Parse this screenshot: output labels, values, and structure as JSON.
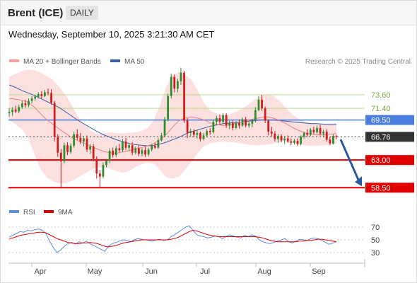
{
  "header": {
    "title": "Brent (ICE)",
    "timeframe": "DAILY"
  },
  "datetime": "Wednesday, September 10, 2025 3:21:30 AM CET",
  "legend": {
    "ma20": "MA 20 + Bollinger Bands",
    "ma50": "MA 50",
    "credit": "Research © 2025 Trading Central",
    "rsi": "RSI",
    "rsi_ma": "9MA"
  },
  "colors": {
    "candle_up": "#2e8b2e",
    "candle_down": "#d11a1a",
    "bollinger_fill": "#fbd9d9",
    "ma20": "#f08080",
    "ma50": "#3a5fa8",
    "resistance_line": "#b6d98a",
    "pivot_line": "#4a7de0",
    "support_line": "#e00000",
    "rsi_line": "#5b8ee0",
    "rsi_ma_line": "#e00000",
    "arrow": "#2b5aa0"
  },
  "chart_data": [
    {
      "type": "candlestick",
      "title": "Brent (ICE)",
      "timeframe": "DAILY",
      "x_labels": [
        "Apr",
        "May",
        "Jun",
        "Jul",
        "Aug",
        "Sep"
      ],
      "ylim": [
        57.5,
        77.5
      ],
      "grid": false,
      "legend_position": "top-left",
      "series_names": [
        "MA 20 + Bollinger Bands",
        "MA 50"
      ],
      "price_levels": [
        {
          "value": 73.6,
          "label": "73.60",
          "kind": "resistance"
        },
        {
          "value": 71.4,
          "label": "71.40",
          "kind": "resistance"
        },
        {
          "value": 69.5,
          "label": "69.50",
          "kind": "pivot"
        },
        {
          "value": 66.76,
          "label": "66.76",
          "kind": "last"
        },
        {
          "value": 63.0,
          "label": "63.00",
          "kind": "support"
        },
        {
          "value": 58.5,
          "label": "58.50",
          "kind": "support"
        }
      ],
      "forecast_arrow": {
        "from": 66.8,
        "to": 58.5,
        "direction": "down"
      },
      "candles": [
        {
          "o": 70.6,
          "h": 71.4,
          "l": 70.0,
          "c": 70.8
        },
        {
          "o": 70.8,
          "h": 71.6,
          "l": 70.2,
          "c": 71.2
        },
        {
          "o": 71.2,
          "h": 71.8,
          "l": 70.6,
          "c": 70.9
        },
        {
          "o": 70.9,
          "h": 72.0,
          "l": 70.6,
          "c": 71.6
        },
        {
          "o": 71.6,
          "h": 72.6,
          "l": 71.3,
          "c": 72.2
        },
        {
          "o": 72.2,
          "h": 72.8,
          "l": 71.5,
          "c": 71.9
        },
        {
          "o": 71.9,
          "h": 73.0,
          "l": 71.6,
          "c": 72.6
        },
        {
          "o": 72.6,
          "h": 73.4,
          "l": 72.2,
          "c": 73.0
        },
        {
          "o": 73.0,
          "h": 73.6,
          "l": 72.6,
          "c": 73.3
        },
        {
          "o": 73.3,
          "h": 74.0,
          "l": 73.0,
          "c": 73.7
        },
        {
          "o": 73.7,
          "h": 74.2,
          "l": 73.0,
          "c": 73.4
        },
        {
          "o": 73.4,
          "h": 74.4,
          "l": 73.2,
          "c": 74.0
        },
        {
          "o": 74.0,
          "h": 74.6,
          "l": 73.5,
          "c": 73.9
        },
        {
          "o": 73.9,
          "h": 74.5,
          "l": 72.0,
          "c": 72.3
        },
        {
          "o": 72.3,
          "h": 72.6,
          "l": 66.0,
          "c": 66.8
        },
        {
          "o": 66.8,
          "h": 67.2,
          "l": 63.5,
          "c": 64.2
        },
        {
          "o": 64.2,
          "h": 64.8,
          "l": 58.6,
          "c": 62.8
        },
        {
          "o": 62.8,
          "h": 65.8,
          "l": 62.5,
          "c": 65.4
        },
        {
          "o": 65.4,
          "h": 65.9,
          "l": 63.8,
          "c": 64.3
        },
        {
          "o": 64.3,
          "h": 65.7,
          "l": 64.0,
          "c": 65.3
        },
        {
          "o": 65.3,
          "h": 67.6,
          "l": 65.0,
          "c": 67.2
        },
        {
          "o": 67.2,
          "h": 68.0,
          "l": 66.2,
          "c": 66.6
        },
        {
          "o": 66.6,
          "h": 67.4,
          "l": 65.6,
          "c": 66.0
        },
        {
          "o": 66.0,
          "h": 66.9,
          "l": 65.2,
          "c": 66.5
        },
        {
          "o": 66.5,
          "h": 67.0,
          "l": 64.3,
          "c": 64.7
        },
        {
          "o": 64.7,
          "h": 65.6,
          "l": 64.0,
          "c": 65.2
        },
        {
          "o": 65.2,
          "h": 65.6,
          "l": 62.8,
          "c": 63.2
        },
        {
          "o": 63.2,
          "h": 63.6,
          "l": 60.0,
          "c": 60.8
        },
        {
          "o": 60.8,
          "h": 61.4,
          "l": 58.6,
          "c": 60.3
        },
        {
          "o": 60.3,
          "h": 62.6,
          "l": 60.0,
          "c": 62.2
        },
        {
          "o": 62.2,
          "h": 63.2,
          "l": 61.8,
          "c": 62.9
        },
        {
          "o": 62.9,
          "h": 64.9,
          "l": 62.5,
          "c": 64.5
        },
        {
          "o": 64.5,
          "h": 65.0,
          "l": 63.4,
          "c": 63.8
        },
        {
          "o": 63.8,
          "h": 65.3,
          "l": 63.5,
          "c": 64.9
        },
        {
          "o": 64.9,
          "h": 65.6,
          "l": 64.3,
          "c": 64.6
        },
        {
          "o": 64.6,
          "h": 66.4,
          "l": 64.3,
          "c": 66.0
        },
        {
          "o": 66.0,
          "h": 66.6,
          "l": 64.6,
          "c": 65.0
        },
        {
          "o": 65.0,
          "h": 65.8,
          "l": 64.4,
          "c": 65.4
        },
        {
          "o": 65.4,
          "h": 65.9,
          "l": 63.8,
          "c": 64.2
        },
        {
          "o": 64.2,
          "h": 65.2,
          "l": 63.9,
          "c": 64.9
        },
        {
          "o": 64.9,
          "h": 65.4,
          "l": 63.6,
          "c": 64.0
        },
        {
          "o": 64.0,
          "h": 64.9,
          "l": 63.6,
          "c": 64.6
        },
        {
          "o": 64.6,
          "h": 65.2,
          "l": 63.5,
          "c": 63.9
        },
        {
          "o": 63.9,
          "h": 65.0,
          "l": 63.6,
          "c": 64.7
        },
        {
          "o": 64.7,
          "h": 65.6,
          "l": 64.4,
          "c": 65.3
        },
        {
          "o": 65.3,
          "h": 65.8,
          "l": 64.8,
          "c": 65.0
        },
        {
          "o": 65.0,
          "h": 66.6,
          "l": 64.8,
          "c": 66.2
        },
        {
          "o": 66.2,
          "h": 67.4,
          "l": 66.0,
          "c": 67.0
        },
        {
          "o": 67.0,
          "h": 70.0,
          "l": 66.8,
          "c": 69.6
        },
        {
          "o": 69.6,
          "h": 73.8,
          "l": 69.3,
          "c": 73.4
        },
        {
          "o": 73.4,
          "h": 77.0,
          "l": 73.0,
          "c": 76.5
        },
        {
          "o": 76.5,
          "h": 76.9,
          "l": 74.0,
          "c": 74.6
        },
        {
          "o": 74.6,
          "h": 76.2,
          "l": 74.0,
          "c": 75.8
        },
        {
          "o": 75.8,
          "h": 78.0,
          "l": 75.2,
          "c": 77.2
        },
        {
          "o": 77.2,
          "h": 77.5,
          "l": 69.0,
          "c": 69.4
        },
        {
          "o": 69.4,
          "h": 69.8,
          "l": 66.6,
          "c": 67.4
        },
        {
          "o": 67.4,
          "h": 68.1,
          "l": 66.8,
          "c": 67.7
        },
        {
          "o": 67.7,
          "h": 68.0,
          "l": 66.7,
          "c": 67.1
        },
        {
          "o": 67.1,
          "h": 67.9,
          "l": 66.5,
          "c": 67.4
        },
        {
          "o": 67.4,
          "h": 67.6,
          "l": 66.0,
          "c": 66.4
        },
        {
          "o": 66.4,
          "h": 67.4,
          "l": 66.2,
          "c": 67.0
        },
        {
          "o": 67.0,
          "h": 68.0,
          "l": 66.7,
          "c": 67.7
        },
        {
          "o": 67.7,
          "h": 68.2,
          "l": 67.1,
          "c": 67.5
        },
        {
          "o": 67.5,
          "h": 69.6,
          "l": 67.3,
          "c": 69.2
        },
        {
          "o": 69.2,
          "h": 70.2,
          "l": 68.7,
          "c": 69.8
        },
        {
          "o": 69.8,
          "h": 70.4,
          "l": 68.8,
          "c": 69.2
        },
        {
          "o": 69.2,
          "h": 70.6,
          "l": 68.9,
          "c": 70.3
        },
        {
          "o": 70.3,
          "h": 70.6,
          "l": 68.2,
          "c": 68.6
        },
        {
          "o": 68.6,
          "h": 69.4,
          "l": 68.0,
          "c": 69.0
        },
        {
          "o": 69.0,
          "h": 69.4,
          "l": 67.8,
          "c": 68.2
        },
        {
          "o": 68.2,
          "h": 69.3,
          "l": 68.0,
          "c": 69.0
        },
        {
          "o": 69.0,
          "h": 69.6,
          "l": 68.1,
          "c": 68.6
        },
        {
          "o": 68.6,
          "h": 69.9,
          "l": 68.4,
          "c": 69.6
        },
        {
          "o": 69.6,
          "h": 70.0,
          "l": 68.3,
          "c": 68.6
        },
        {
          "o": 68.6,
          "h": 69.2,
          "l": 68.2,
          "c": 68.9
        },
        {
          "o": 68.9,
          "h": 69.6,
          "l": 68.3,
          "c": 69.4
        },
        {
          "o": 69.4,
          "h": 71.6,
          "l": 69.1,
          "c": 71.1
        },
        {
          "o": 71.1,
          "h": 73.4,
          "l": 70.9,
          "c": 72.8
        },
        {
          "o": 72.8,
          "h": 73.6,
          "l": 71.0,
          "c": 71.4
        },
        {
          "o": 71.4,
          "h": 71.7,
          "l": 69.0,
          "c": 69.4
        },
        {
          "o": 69.4,
          "h": 69.6,
          "l": 67.0,
          "c": 67.6
        },
        {
          "o": 67.6,
          "h": 68.4,
          "l": 66.8,
          "c": 67.3
        },
        {
          "o": 67.3,
          "h": 67.7,
          "l": 66.0,
          "c": 66.4
        },
        {
          "o": 66.4,
          "h": 67.2,
          "l": 65.8,
          "c": 66.9
        },
        {
          "o": 66.9,
          "h": 67.2,
          "l": 65.9,
          "c": 66.2
        },
        {
          "o": 66.2,
          "h": 66.9,
          "l": 65.6,
          "c": 66.5
        },
        {
          "o": 66.5,
          "h": 67.0,
          "l": 65.8,
          "c": 66.0
        },
        {
          "o": 66.0,
          "h": 66.5,
          "l": 65.4,
          "c": 65.8
        },
        {
          "o": 65.8,
          "h": 66.4,
          "l": 65.5,
          "c": 66.1
        },
        {
          "o": 66.1,
          "h": 66.5,
          "l": 65.3,
          "c": 65.6
        },
        {
          "o": 65.6,
          "h": 67.0,
          "l": 65.4,
          "c": 66.8
        },
        {
          "o": 66.8,
          "h": 67.6,
          "l": 66.5,
          "c": 67.4
        },
        {
          "o": 67.4,
          "h": 68.0,
          "l": 66.8,
          "c": 67.1
        },
        {
          "o": 67.1,
          "h": 68.2,
          "l": 66.9,
          "c": 67.9
        },
        {
          "o": 67.9,
          "h": 68.4,
          "l": 67.2,
          "c": 67.5
        },
        {
          "o": 67.5,
          "h": 68.6,
          "l": 67.3,
          "c": 68.2
        },
        {
          "o": 68.2,
          "h": 68.7,
          "l": 67.0,
          "c": 67.3
        },
        {
          "o": 67.3,
          "h": 67.9,
          "l": 66.8,
          "c": 67.6
        },
        {
          "o": 67.6,
          "h": 68.0,
          "l": 66.0,
          "c": 66.3
        },
        {
          "o": 66.3,
          "h": 66.8,
          "l": 65.4,
          "c": 65.7
        },
        {
          "o": 65.7,
          "h": 67.2,
          "l": 65.5,
          "c": 66.9
        },
        {
          "o": 66.9,
          "h": 67.1,
          "l": 66.4,
          "c": 66.76
        }
      ],
      "ma20": [
        73.0,
        72.9,
        72.7,
        72.4,
        71.6,
        70.5,
        69.5,
        68.8,
        68.0,
        67.3,
        66.6,
        66.1,
        65.7,
        65.2,
        64.8,
        64.4,
        64.2,
        64.1,
        64.3,
        64.5,
        64.8,
        65.0,
        65.3,
        65.7,
        66.3,
        67.2,
        68.4,
        69.4,
        69.9,
        70.0,
        69.8,
        69.5,
        69.0,
        68.8,
        68.6,
        68.7,
        68.9,
        69.2,
        69.5,
        69.7,
        69.9,
        70.0,
        69.8,
        69.4,
        68.9,
        68.3,
        67.8,
        67.4,
        67.2,
        67.1,
        67.1,
        67.2,
        67.3
      ],
      "bb_upper": [
        76.5,
        77.0,
        77.4,
        77.7,
        77.6,
        77.2,
        76.6,
        76.0,
        74.8,
        73.5,
        71.8,
        70.0,
        68.8,
        67.7,
        67.2,
        67.3,
        67.5,
        67.4,
        67.3,
        67.4,
        67.5,
        67.7,
        68.2,
        69.5,
        72.0,
        75.0,
        76.8,
        77.3,
        76.8,
        76.0,
        74.2,
        72.2,
        71.0,
        70.5,
        70.3,
        70.4,
        70.8,
        71.3,
        72.0,
        72.8,
        73.4,
        73.7,
        73.4,
        72.6,
        71.4,
        70.4,
        69.7,
        69.2,
        69.0,
        68.9,
        68.9,
        68.9,
        68.9
      ],
      "bb_lower": [
        69.5,
        68.8,
        68.0,
        66.6,
        64.0,
        61.5,
        60.2,
        59.5,
        59.2,
        59.2,
        59.6,
        60.2,
        60.8,
        61.4,
        61.8,
        61.8,
        61.6,
        61.2,
        60.9,
        61.2,
        61.8,
        62.3,
        62.6,
        62.4,
        61.3,
        60.2,
        60.0,
        60.3,
        61.5,
        62.8,
        64.2,
        65.3,
        65.7,
        65.9,
        66.0,
        65.9,
        65.8,
        65.7,
        65.5,
        65.4,
        65.4,
        65.5,
        65.7,
        65.9,
        66.0,
        65.8,
        65.6,
        65.4,
        65.3,
        65.3,
        65.4,
        65.5,
        65.6
      ],
      "ma50": [
        75.2,
        74.8,
        74.3,
        73.9,
        73.5,
        73.0,
        72.5,
        72.0,
        71.5,
        70.8,
        70.1,
        69.4,
        68.8,
        68.2,
        67.6,
        67.1,
        66.7,
        66.3,
        66.0,
        65.7,
        65.5,
        65.4,
        65.3,
        65.4,
        65.6,
        65.9,
        66.3,
        66.7,
        67.2,
        67.6,
        67.9,
        68.2,
        68.5,
        68.7,
        68.9,
        69.0,
        69.1,
        69.2,
        69.3,
        69.4,
        69.5,
        69.5,
        69.5,
        69.4,
        69.3,
        69.2,
        69.1,
        69.0,
        68.9,
        68.9,
        68.8,
        68.8,
        68.8
      ]
    },
    {
      "type": "line",
      "title": "RSI",
      "y_ticks": [
        70,
        50,
        30
      ],
      "ylim": [
        20,
        80
      ],
      "grid": true,
      "series": [
        {
          "name": "RSI",
          "values": [
            55,
            57,
            60,
            63,
            62,
            65,
            64,
            66,
            67,
            65,
            60,
            48,
            38,
            30,
            34,
            40,
            44,
            46,
            43,
            47,
            45,
            48,
            44,
            41,
            38,
            35,
            32,
            40,
            44,
            46,
            48,
            50,
            49,
            47,
            50,
            52,
            51,
            50,
            49,
            48,
            50,
            51,
            49,
            50,
            55,
            58,
            62,
            66,
            70,
            72,
            65,
            58,
            56,
            55,
            53,
            54,
            56,
            55,
            52,
            55,
            58,
            56,
            54,
            53,
            57,
            55,
            58,
            56,
            50,
            47,
            45,
            44,
            46,
            48,
            50,
            52,
            47,
            45,
            48,
            51,
            50,
            49,
            52,
            53,
            52,
            49,
            46,
            43,
            45,
            47
          ]
        },
        {
          "name": "9MA",
          "values": [
            52,
            53,
            55,
            57,
            58,
            59,
            60,
            61,
            62,
            62,
            61,
            58,
            55,
            52,
            50,
            48,
            46,
            45,
            44,
            44,
            45,
            45,
            46,
            45,
            44,
            42,
            40,
            39,
            40,
            41,
            43,
            45,
            46,
            47,
            48,
            49,
            50,
            50,
            50,
            50,
            50,
            50,
            50,
            50,
            51,
            52,
            54,
            57,
            60,
            63,
            65,
            64,
            62,
            60,
            58,
            57,
            56,
            55,
            55,
            55,
            55,
            55,
            55,
            55,
            55,
            55,
            55,
            55,
            54,
            53,
            51,
            49,
            48,
            47,
            47,
            47,
            47,
            47,
            47,
            48,
            48,
            49,
            49,
            50,
            51,
            51,
            50,
            49,
            48,
            47
          ]
        }
      ]
    }
  ]
}
